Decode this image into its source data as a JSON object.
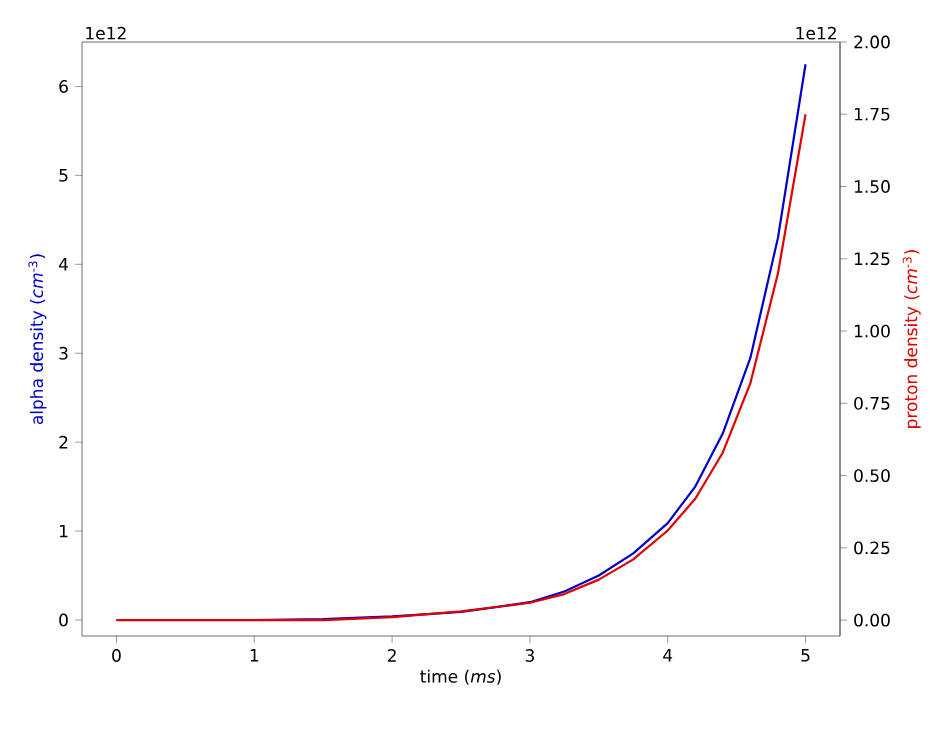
{
  "chart_data": {
    "type": "line",
    "xlabel": "time (*ms*)",
    "ylabel": "alpha density (*cm*$^{-3}$)",
    "y2label": "proton density (*cm*$^{-3}$)",
    "annotations": [
      "1e12",
      "1e12"
    ],
    "x": [
      0,
      1,
      1.5,
      2,
      2.5,
      3,
      3.25,
      3.5,
      3.75,
      4,
      4.2,
      4.4,
      4.6,
      4.8,
      5
    ],
    "series": [
      {
        "color": "#0000cc",
        "values": [
          0,
          0,
          0.01,
          0.04,
          0.09,
          0.2,
          0.32,
          0.5,
          0.75,
          1.09,
          1.5,
          2.1,
          2.95,
          4.3,
          6.25
        ]
      },
      {
        "color": "#e00000",
        "axis": "y2",
        "values": [
          0,
          0,
          0,
          0.01,
          0.03,
          0.06,
          0.09,
          0.14,
          0.21,
          0.31,
          0.42,
          0.58,
          0.82,
          1.2,
          1.75
        ]
      }
    ],
    "xlim": [
      -0.25,
      5.25
    ],
    "xticks": [
      0,
      1,
      2,
      3,
      4,
      5
    ],
    "ylim": [
      -0.18,
      6.5
    ],
    "yticks": [
      0,
      1,
      2,
      3,
      4,
      5,
      6
    ],
    "y2lim": [
      -0.055,
      2.0
    ],
    "y2ticks": [
      {
        "value": 0,
        "label": "0.00"
      },
      {
        "value": 0.25,
        "label": "0.25"
      },
      {
        "value": 0.5,
        "label": "0.50"
      },
      {
        "value": 0.75,
        "label": "0.75"
      },
      {
        "value": 1.0,
        "label": "1.00"
      },
      {
        "value": 1.25,
        "label": "1.25"
      },
      {
        "value": 1.5,
        "label": "1.50"
      },
      {
        "value": 1.75,
        "label": "1.75"
      },
      {
        "value": 2.0,
        "label": "2.00"
      }
    ],
    "grid": false,
    "marker": "none",
    "line_style": "solid"
  }
}
